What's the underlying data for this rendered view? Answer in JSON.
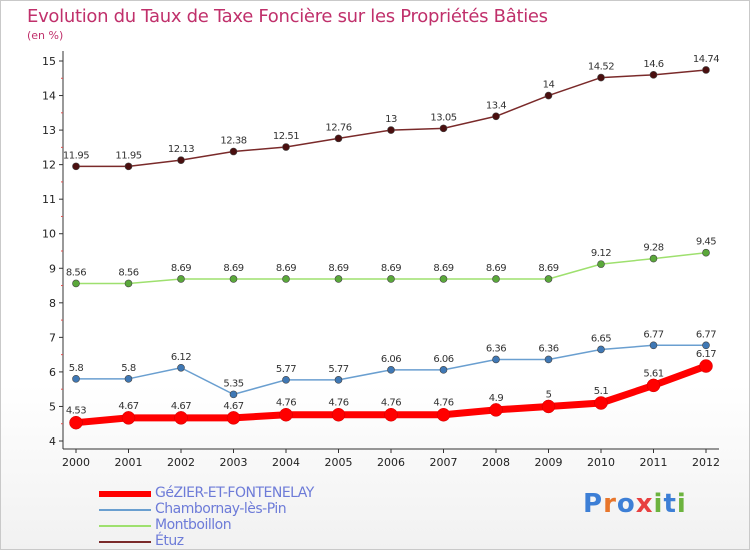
{
  "title": "Evolution du Taux de Taxe Foncière sur les Propriétés Bâties",
  "subtitle": "(en %)",
  "logo": {
    "text": "Proxiti",
    "letters": [
      "P",
      "r",
      "o",
      "x",
      "i",
      "t",
      "i"
    ],
    "colors": [
      "#3d7fd6",
      "#e8762b",
      "#3d7fd6",
      "#e84040",
      "#6cb33e",
      "#3d7fd6",
      "#6cb33e"
    ]
  },
  "chart_data": {
    "type": "line",
    "x": [
      "2000",
      "2001",
      "2002",
      "2003",
      "2004",
      "2005",
      "2006",
      "2007",
      "2008",
      "2009",
      "2010",
      "2011",
      "2012"
    ],
    "ylim": [
      4,
      15
    ],
    "yticks": [
      "4",
      "5",
      "6",
      "7",
      "8",
      "9",
      "10",
      "11",
      "12",
      "13",
      "14",
      "15"
    ],
    "grid": false,
    "legend_position": "bottom-left",
    "series": [
      {
        "name": "GéZIER-ET-FONTENELAY",
        "color": "#ff0000",
        "width": 7,
        "marker": 6.5,
        "values": [
          4.53,
          4.67,
          4.67,
          4.67,
          4.76,
          4.76,
          4.76,
          4.76,
          4.9,
          5,
          5.1,
          5.61,
          6.17
        ],
        "labels": [
          "4.53",
          "4.67",
          "4.67",
          "4.67",
          "4.76",
          "4.76",
          "4.76",
          "4.76",
          "4.9",
          "5",
          "5.1",
          "5.61",
          "6.17"
        ]
      },
      {
        "name": "Chambornay-lès-Pin",
        "color": "#6a9fd0",
        "width": 1.5,
        "marker": 3.5,
        "values": [
          5.8,
          5.8,
          6.12,
          5.35,
          5.77,
          5.77,
          6.06,
          6.06,
          6.36,
          6.36,
          6.65,
          6.77,
          6.77
        ],
        "labels": [
          "5.8",
          "5.8",
          "6.12",
          "5.35",
          "5.77",
          "5.77",
          "6.06",
          "6.06",
          "6.36",
          "6.36",
          "6.65",
          "6.77",
          "6.77"
        ]
      },
      {
        "name": "Montboillon",
        "color": "#9ee06e",
        "width": 1.5,
        "marker": 3.5,
        "values": [
          8.56,
          8.56,
          8.69,
          8.69,
          8.69,
          8.69,
          8.69,
          8.69,
          8.69,
          8.69,
          9.12,
          9.28,
          9.45
        ],
        "labels": [
          "8.56",
          "8.56",
          "8.69",
          "8.69",
          "8.69",
          "8.69",
          "8.69",
          "8.69",
          "8.69",
          "8.69",
          "9.12",
          "9.28",
          "9.45"
        ]
      },
      {
        "name": "Étuz",
        "color": "#7a2a2a",
        "width": 1.5,
        "marker": 3.5,
        "values": [
          11.95,
          11.95,
          12.13,
          12.38,
          12.51,
          12.76,
          13,
          13.05,
          13.4,
          14,
          14.52,
          14.6,
          14.74
        ],
        "labels": [
          "11.95",
          "11.95",
          "12.13",
          "12.38",
          "12.51",
          "12.76",
          "13",
          "13.05",
          "13.4",
          "14",
          "14.52",
          "14.6",
          "14.74"
        ]
      }
    ]
  }
}
